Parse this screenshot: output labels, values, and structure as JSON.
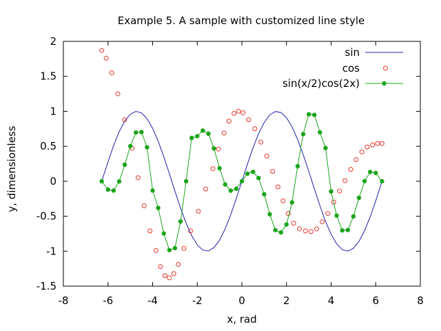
{
  "chart_data": {
    "type": "line",
    "title": "Example 5. A sample with customized line style",
    "xlabel": "x, rad",
    "ylabel": "y, dimensionless",
    "xlim": [
      -8,
      8
    ],
    "ylim": [
      -1.5,
      2
    ],
    "xticks": [
      -8,
      -6,
      -4,
      -2,
      0,
      2,
      4,
      6,
      8
    ],
    "yticks": [
      -1.5,
      -1,
      -0.5,
      0,
      0.5,
      1,
      1.5,
      2
    ],
    "xtick_labels": [
      "-8",
      "-6",
      "-4",
      "-2",
      "0",
      "2",
      "4",
      "6",
      "8"
    ],
    "ytick_labels": [
      "-1.5",
      "-1",
      "-0.5",
      "0",
      "0.5",
      "1",
      "1.5",
      "2"
    ],
    "grid": false,
    "legend": "top-right",
    "series": [
      {
        "name": "sin",
        "style": "line",
        "color": "#1f1fa8",
        "x": [
          -6.2832,
          -6.0,
          -5.75,
          -5.5,
          -5.25,
          -5.0,
          -4.75,
          -4.5,
          -4.25,
          -4.0,
          -3.75,
          -3.5,
          -3.25,
          -3.0,
          -2.75,
          -2.5,
          -2.25,
          -2.0,
          -1.75,
          -1.5,
          -1.25,
          -1.0,
          -0.75,
          -0.5,
          -0.25,
          0.0,
          0.25,
          0.5,
          0.75,
          1.0,
          1.25,
          1.5,
          1.75,
          2.0,
          2.25,
          2.5,
          2.75,
          3.0,
          3.25,
          3.5,
          3.75,
          4.0,
          4.25,
          4.5,
          4.75,
          5.0,
          5.25,
          5.5,
          5.75,
          6.0,
          6.2832
        ],
        "y": [
          0.0,
          0.279,
          0.509,
          0.706,
          0.859,
          0.959,
          0.999,
          0.978,
          0.895,
          0.757,
          0.572,
          0.351,
          0.108,
          -0.141,
          -0.382,
          -0.598,
          -0.778,
          -0.909,
          -0.984,
          -0.997,
          -0.949,
          -0.841,
          -0.682,
          -0.479,
          -0.247,
          0.0,
          0.247,
          0.479,
          0.682,
          0.841,
          0.949,
          0.997,
          0.984,
          0.909,
          0.778,
          0.598,
          0.382,
          0.141,
          -0.108,
          -0.351,
          -0.572,
          -0.757,
          -0.895,
          -0.978,
          -0.999,
          -0.959,
          -0.859,
          -0.706,
          -0.509,
          -0.279,
          0.0
        ]
      },
      {
        "name": "cos",
        "style": "points",
        "marker": "open-circle",
        "color": "#e8352d",
        "x": [
          -6.28,
          -6.08,
          -5.83,
          -5.56,
          -5.26,
          -4.92,
          -4.65,
          -4.38,
          -4.12,
          -3.85,
          -3.65,
          -3.45,
          -3.25,
          -3.05,
          -2.85,
          -2.6,
          -2.3,
          -1.95,
          -1.62,
          -1.3,
          -1.05,
          -0.8,
          -0.58,
          -0.35,
          -0.15,
          0.05,
          0.3,
          0.58,
          0.85,
          1.12,
          1.38,
          1.62,
          1.85,
          2.08,
          2.32,
          2.58,
          2.85,
          3.1,
          3.35,
          3.6,
          3.85,
          4.12,
          4.38,
          4.62,
          4.88,
          5.12,
          5.38,
          5.62,
          5.86,
          6.08,
          6.28
        ],
        "y": [
          1.87,
          1.76,
          1.55,
          1.25,
          0.88,
          0.47,
          0.05,
          -0.35,
          -0.71,
          -0.99,
          -1.22,
          -1.35,
          -1.38,
          -1.32,
          -1.19,
          -0.96,
          -0.71,
          -0.43,
          -0.11,
          0.18,
          0.46,
          0.69,
          0.86,
          0.97,
          1.0,
          0.98,
          0.88,
          0.75,
          0.56,
          0.36,
          0.14,
          -0.08,
          -0.28,
          -0.46,
          -0.6,
          -0.68,
          -0.71,
          -0.72,
          -0.68,
          -0.58,
          -0.46,
          -0.3,
          -0.14,
          0.01,
          0.17,
          0.31,
          0.42,
          0.49,
          0.52,
          0.54,
          0.54
        ]
      },
      {
        "name": "sin(x/2)cos(2x)",
        "style": "linespoints",
        "marker": "filled-circle",
        "color": "#1aa51a",
        "x": [
          -6.2832,
          -6.0,
          -5.75,
          -5.5,
          -5.25,
          -5.0,
          -4.75,
          -4.5,
          -4.25,
          -4.0,
          -3.75,
          -3.5,
          -3.25,
          -3.0,
          -2.75,
          -2.5,
          -2.25,
          -2.0,
          -1.75,
          -1.5,
          -1.25,
          -1.0,
          -0.75,
          -0.5,
          -0.25,
          0.0,
          0.25,
          0.5,
          0.75,
          1.0,
          1.25,
          1.5,
          1.75,
          2.0,
          2.25,
          2.5,
          2.75,
          3.0,
          3.25,
          3.5,
          3.75,
          4.0,
          4.25,
          4.5,
          4.75,
          5.0,
          5.25,
          5.5,
          5.75,
          6.0,
          6.2832
        ],
        "y": [
          0.0,
          -0.119,
          -0.133,
          -0.003,
          0.237,
          0.502,
          0.697,
          0.703,
          0.485,
          -0.132,
          -0.381,
          -0.746,
          -0.984,
          -0.956,
          -0.575,
          -0.0,
          0.62,
          0.644,
          0.725,
          0.68,
          0.47,
          0.186,
          -0.046,
          -0.134,
          -0.108,
          0.0,
          0.109,
          0.134,
          0.046,
          -0.186,
          -0.472,
          -0.698,
          -0.732,
          -0.618,
          -0.302,
          0.215,
          0.674,
          0.958,
          0.949,
          0.7,
          0.476,
          -0.145,
          -0.491,
          -0.703,
          -0.697,
          -0.502,
          -0.237,
          0.003,
          0.133,
          0.119,
          0.0
        ]
      }
    ]
  }
}
